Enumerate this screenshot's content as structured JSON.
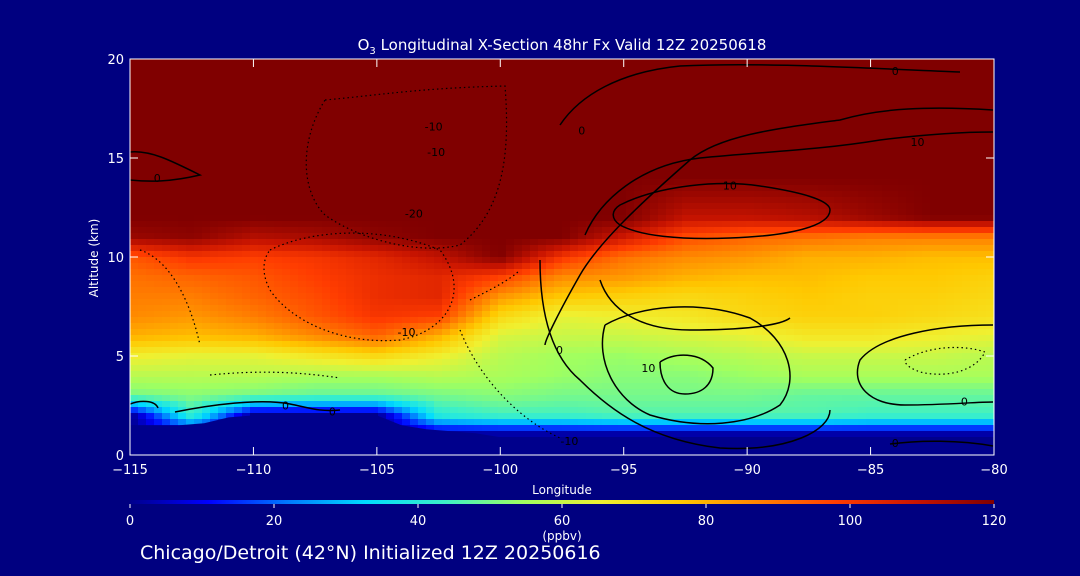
{
  "chart_data": {
    "type": "heatmap",
    "title": {
      "species_base": "O",
      "species_subscript": "3",
      "rest": " Longitudinal X-Section 48hr  Fx Valid 12Z 20250618"
    },
    "xlabel": "Longitude",
    "ylabel": "Altitude (km)",
    "xlim": [
      -115,
      -80
    ],
    "ylim": [
      0,
      20
    ],
    "x_ticks": [
      -115,
      -110,
      -105,
      -100,
      -95,
      -90,
      -85,
      -80
    ],
    "x_tick_labels": [
      "−115",
      "−110",
      "−105",
      "−100",
      "−95",
      "−90",
      "−85",
      "−80"
    ],
    "y_ticks": [
      0,
      5,
      10,
      15,
      20
    ],
    "y_tick_labels": [
      "0",
      "5",
      "10",
      "15",
      "20"
    ],
    "colorbar": {
      "label": "(ppbv)",
      "range": [
        0,
        120
      ],
      "ticks": [
        0,
        20,
        40,
        60,
        80,
        100,
        120
      ],
      "tick_labels": [
        "0",
        "20",
        "40",
        "60",
        "80",
        "100",
        "120"
      ],
      "colors": [
        "#00008c",
        "#0000ff",
        "#0078ff",
        "#00dcff",
        "#3cf0c8",
        "#a0ff60",
        "#f0f030",
        "#ffc800",
        "#ff8200",
        "#ff3c00",
        "#c81400",
        "#800000"
      ]
    },
    "field": {
      "x": [
        -115,
        -112.5,
        -110,
        -107.5,
        -105,
        -102.5,
        -100,
        -97.5,
        -95,
        -92.5,
        -90,
        -87.5,
        -85,
        -82.5,
        -80
      ],
      "y": [
        0,
        1,
        2,
        3,
        4,
        5,
        6,
        7,
        8,
        9,
        10,
        11,
        12,
        14,
        17,
        20
      ],
      "values": [
        [
          0,
          0,
          0,
          0,
          0,
          0,
          0,
          0,
          0,
          0,
          0,
          0,
          0,
          0,
          0
        ],
        [
          0,
          0,
          0,
          0,
          0,
          0,
          0,
          0,
          0,
          0,
          0,
          0,
          0,
          0,
          0
        ],
        [
          0,
          42,
          0,
          0,
          0,
          40,
          44,
          44,
          46,
          46,
          46,
          46,
          44,
          44,
          44
        ],
        [
          50,
          52,
          50,
          48,
          48,
          50,
          52,
          50,
          50,
          50,
          50,
          48,
          48,
          48,
          48
        ],
        [
          58,
          58,
          58,
          56,
          56,
          58,
          56,
          54,
          52,
          52,
          54,
          56,
          56,
          56,
          56
        ],
        [
          66,
          64,
          64,
          68,
          72,
          66,
          58,
          55,
          54,
          56,
          58,
          60,
          60,
          60,
          58
        ],
        [
          80,
          78,
          80,
          86,
          92,
          80,
          62,
          60,
          60,
          62,
          64,
          68,
          68,
          66,
          64
        ],
        [
          86,
          84,
          88,
          94,
          100,
          98,
          72,
          64,
          66,
          68,
          72,
          74,
          74,
          72,
          70
        ],
        [
          88,
          88,
          92,
          96,
          102,
          104,
          84,
          76,
          74,
          72,
          74,
          76,
          74,
          74,
          72
        ],
        [
          90,
          92,
          94,
          98,
          102,
          104,
          98,
          86,
          84,
          80,
          78,
          78,
          76,
          76,
          74
        ],
        [
          94,
          100,
          98,
          100,
          104,
          110,
          120,
          100,
          90,
          86,
          84,
          80,
          80,
          78,
          78
        ],
        [
          116,
          118,
          112,
          114,
          118,
          120,
          120,
          120,
          108,
          96,
          92,
          90,
          88,
          88,
          88
        ],
        [
          120,
          120,
          120,
          120,
          120,
          120,
          120,
          120,
          120,
          110,
          110,
          112,
          116,
          120,
          120
        ],
        [
          120,
          120,
          120,
          120,
          120,
          120,
          120,
          120,
          120,
          120,
          120,
          120,
          120,
          120,
          120
        ],
        [
          120,
          120,
          120,
          120,
          120,
          120,
          120,
          120,
          120,
          120,
          120,
          120,
          120,
          120,
          120
        ],
        [
          120,
          120,
          120,
          120,
          120,
          120,
          120,
          120,
          120,
          120,
          120,
          120,
          120,
          120,
          120
        ]
      ]
    },
    "terrain": {
      "x": [
        -115,
        -114,
        -113,
        -112,
        -111,
        -110,
        -109,
        -108,
        -107,
        -106,
        -105,
        -104,
        -103,
        -102,
        -101,
        -100,
        -99,
        -98,
        -97,
        -96,
        -95,
        -94,
        -93,
        -92,
        -91,
        -90,
        -89,
        -88,
        -87,
        -86,
        -85,
        -84,
        -83,
        -82,
        -81,
        -80
      ],
      "y": [
        1.5,
        1.5,
        1.5,
        1.6,
        1.9,
        2.0,
        2.0,
        2.0,
        2.1,
        2.1,
        2.0,
        1.5,
        1.3,
        1.2,
        1.1,
        0.9,
        0.8,
        0.7,
        0.6,
        0.5,
        0.4,
        0.35,
        0.3,
        0.28,
        0.26,
        0.25,
        0.24,
        0.22,
        0.21,
        0.2,
        0.2,
        0.2,
        0.2,
        0.2,
        0.2,
        0.2
      ]
    },
    "contour_labels": [
      {
        "text": "-10",
        "x": -102.7,
        "y": 16.6
      },
      {
        "text": "-10",
        "x": -102.6,
        "y": 15.3
      },
      {
        "text": "-20",
        "x": -103.5,
        "y": 12.2
      },
      {
        "text": "-10",
        "x": -103.8,
        "y": 6.2
      },
      {
        "text": "0",
        "x": -113.9,
        "y": 14.0
      },
      {
        "text": "0",
        "x": -96.7,
        "y": 16.4
      },
      {
        "text": "0",
        "x": -84.0,
        "y": 19.4
      },
      {
        "text": "10",
        "x": -90.7,
        "y": 13.6
      },
      {
        "text": "10",
        "x": -83.1,
        "y": 15.8
      },
      {
        "text": "0",
        "x": -97.6,
        "y": 5.3
      },
      {
        "text": "10",
        "x": -94.0,
        "y": 4.4
      },
      {
        "text": "0",
        "x": -108.7,
        "y": 2.5
      },
      {
        "text": "0",
        "x": -106.8,
        "y": 2.2
      },
      {
        "text": "-10",
        "x": -97.2,
        "y": 0.7
      },
      {
        "text": "0",
        "x": -84.0,
        "y": 0.6
      },
      {
        "text": "0",
        "x": -81.2,
        "y": 2.7
      }
    ]
  },
  "caption": "Chicago/Detroit (42°N) Initialized 12Z 20250616"
}
